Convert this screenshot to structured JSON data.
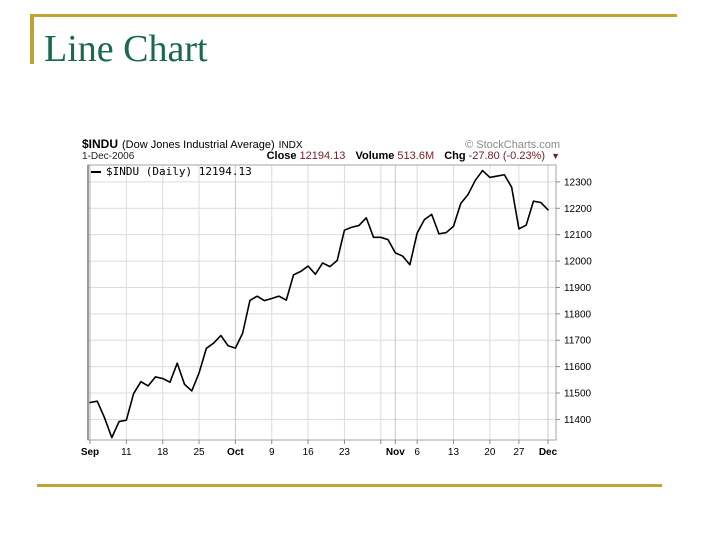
{
  "slide": {
    "title": "Line Chart"
  },
  "colors": {
    "accent_gold": "#c2a233",
    "title_green": "#186a4b",
    "value_maroon": "#73222b",
    "copyright_gray": "#8a8a8a",
    "grid_gray": "#dcdcdc",
    "line_black": "#000000"
  },
  "chart": {
    "header": {
      "symbol": "$INDU",
      "name": "(Dow Jones Industrial Average)",
      "exchange": "INDX",
      "source": "© StockCharts.com",
      "date": "1-Dec-2006",
      "close_label": "Close",
      "close_value": "12194.13",
      "volume_label": "Volume",
      "volume_value": "513.6M",
      "chg_label": "Chg",
      "chg_value": "-27.80 (-0.23%)",
      "down_arrow": "▼"
    },
    "legend": "$INDU (Daily) 12194.13"
  },
  "chart_data": {
    "type": "line",
    "title": "$INDU (Dow Jones Industrial Average) INDX",
    "subtitle": "1-Dec-2006  Close 12194.13  Volume 513.6M  Chg -27.80 (-0.23%)",
    "xlabel": "",
    "ylabel": "",
    "ylim": [
      11322,
      12364
    ],
    "yticks": [
      11400,
      11500,
      11600,
      11700,
      11800,
      11900,
      12000,
      12100,
      12200,
      12300
    ],
    "grid": true,
    "legend_position": "top-left",
    "line_color": "#000000",
    "xticks": [
      {
        "i": 0,
        "label": "Sep",
        "bold": true
      },
      {
        "i": 5,
        "label": "11",
        "bold": false
      },
      {
        "i": 10,
        "label": "18",
        "bold": false
      },
      {
        "i": 15,
        "label": "25",
        "bold": false
      },
      {
        "i": 20,
        "label": "Oct",
        "bold": true
      },
      {
        "i": 25,
        "label": "9",
        "bold": false
      },
      {
        "i": 30,
        "label": "16",
        "bold": false
      },
      {
        "i": 35,
        "label": "23",
        "bold": false
      },
      {
        "i": 40,
        "label": "",
        "bold": false
      },
      {
        "i": 42,
        "label": "Nov",
        "bold": true
      },
      {
        "i": 45,
        "label": "6",
        "bold": false
      },
      {
        "i": 50,
        "label": "13",
        "bold": false
      },
      {
        "i": 55,
        "label": "20",
        "bold": false
      },
      {
        "i": 59,
        "label": "27",
        "bold": false
      },
      {
        "i": 63,
        "label": "Dec",
        "bold": true
      }
    ],
    "series": [
      {
        "name": "$INDU (Daily)",
        "x": [
          "Sep 1",
          "Sep 5",
          "Sep 6",
          "Sep 7",
          "Sep 8",
          "Sep 11",
          "Sep 12",
          "Sep 13",
          "Sep 14",
          "Sep 15",
          "Sep 18",
          "Sep 19",
          "Sep 20",
          "Sep 21",
          "Sep 22",
          "Sep 25",
          "Sep 26",
          "Sep 27",
          "Sep 28",
          "Sep 29",
          "Oct 2",
          "Oct 3",
          "Oct 4",
          "Oct 5",
          "Oct 6",
          "Oct 9",
          "Oct 10",
          "Oct 11",
          "Oct 12",
          "Oct 13",
          "Oct 16",
          "Oct 17",
          "Oct 18",
          "Oct 19",
          "Oct 20",
          "Oct 23",
          "Oct 24",
          "Oct 25",
          "Oct 26",
          "Oct 27",
          "Oct 30",
          "Oct 31",
          "Nov 1",
          "Nov 2",
          "Nov 3",
          "Nov 6",
          "Nov 7",
          "Nov 8",
          "Nov 9",
          "Nov 10",
          "Nov 13",
          "Nov 14",
          "Nov 15",
          "Nov 16",
          "Nov 17",
          "Nov 20",
          "Nov 21",
          "Nov 22",
          "Nov 24",
          "Nov 27",
          "Nov 28",
          "Nov 29",
          "Nov 30",
          "Dec 1"
        ],
        "values": [
          11464,
          11469,
          11406,
          11331,
          11392,
          11397,
          11498,
          11543,
          11527,
          11561,
          11555,
          11541,
          11613,
          11533,
          11508,
          11576,
          11669,
          11689,
          11718,
          11679,
          11670,
          11727,
          11851,
          11867,
          11850,
          11858,
          11867,
          11852,
          11948,
          11961,
          11981,
          11950,
          11993,
          11979,
          12002,
          12117,
          12128,
          12135,
          12164,
          12090,
          12090,
          12081,
          12031,
          12019,
          11986,
          12106,
          12157,
          12177,
          12103,
          12108,
          12132,
          12218,
          12252,
          12306,
          12343,
          12317,
          12322,
          12327,
          12280,
          12122,
          12136,
          12227,
          12222,
          12194.13
        ]
      }
    ]
  }
}
